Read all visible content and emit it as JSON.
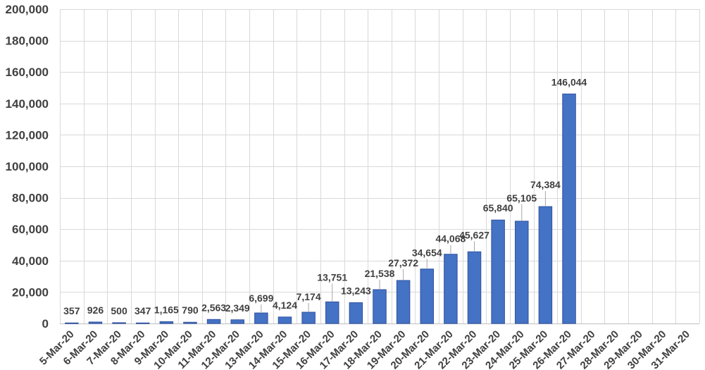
{
  "chart_data": {
    "type": "bar",
    "title": "",
    "xlabel": "",
    "ylabel": "",
    "ylim": [
      0,
      200000
    ],
    "yticks": [
      0,
      20000,
      40000,
      60000,
      80000,
      100000,
      120000,
      140000,
      160000,
      180000,
      200000
    ],
    "ytick_labels": [
      "0",
      "20,000",
      "40,000",
      "60,000",
      "80,000",
      "100,000",
      "120,000",
      "140,000",
      "160,000",
      "180,000",
      "200,000"
    ],
    "grid": true,
    "legend": "none",
    "bar_color": "#4472C4",
    "bar_edge_color": "#2F52A0",
    "categories": [
      "5-Mar-20",
      "6-Mar-20",
      "7-Mar-20",
      "8-Mar-20",
      "9-Mar-20",
      "10-Mar-20",
      "11-Mar-20",
      "12-Mar-20",
      "13-Mar-20",
      "14-Mar-20",
      "15-Mar-20",
      "16-Mar-20",
      "17-Mar-20",
      "18-Mar-20",
      "19-Mar-20",
      "20-Mar-20",
      "21-Mar-20",
      "22-Mar-20",
      "23-Mar-20",
      "24-Mar-20",
      "25-Mar-20",
      "26-Mar-20",
      "27-Mar-20",
      "28-Mar-20",
      "29-Mar-20",
      "30-Mar-20",
      "31-Mar-20"
    ],
    "values": [
      357,
      926,
      500,
      347,
      1165,
      790,
      2563,
      2349,
      6699,
      4124,
      7174,
      13751,
      13243,
      21538,
      27372,
      34654,
      44068,
      45627,
      65840,
      65105,
      74384,
      146044,
      null,
      null,
      null,
      null,
      null
    ],
    "data_labels": [
      "357",
      "926",
      "500",
      "347",
      "1,165",
      "790",
      "2,563",
      "2,349",
      "6,699",
      "4,124",
      "7,174",
      "13,751",
      "13,243",
      "21,538",
      "27,372",
      "34,654",
      "44,068",
      "45,627",
      "65,840",
      "65,105",
      "74,384",
      "146,044",
      "",
      "",
      "",
      "",
      ""
    ]
  }
}
